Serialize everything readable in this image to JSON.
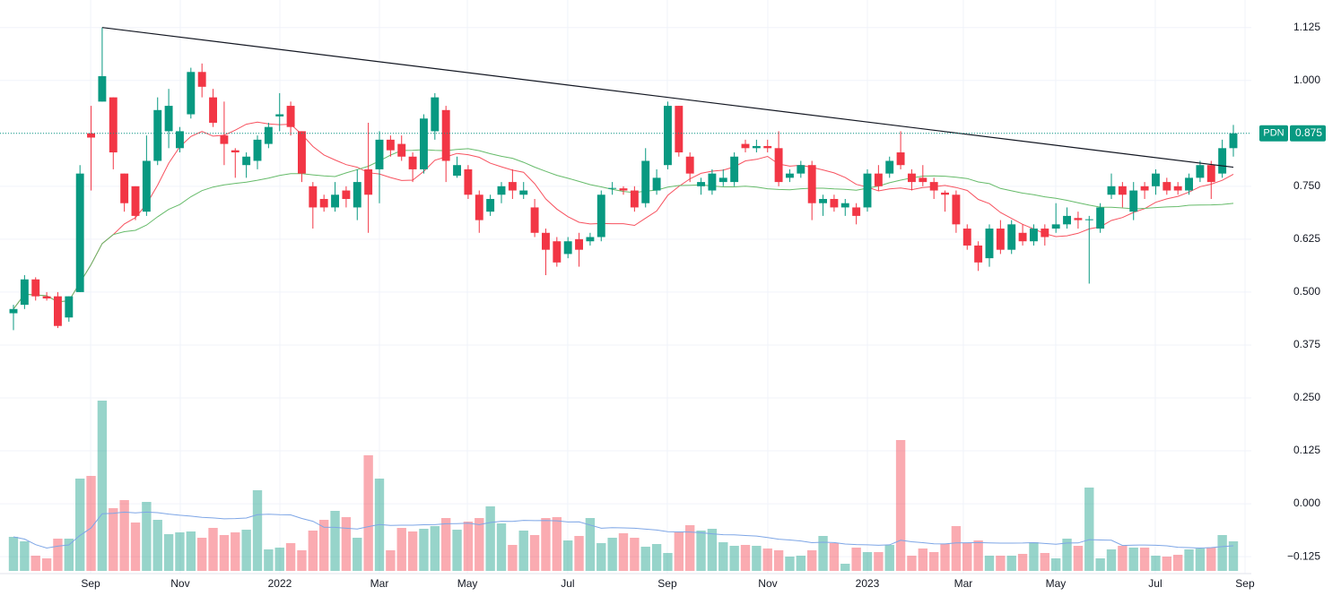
{
  "chart_data": {
    "type": "candlestick",
    "symbol": "PDN",
    "last_price": 0.875,
    "up_color": "#089981",
    "down_color": "#f23645",
    "ylim": [
      -0.165,
      1.19
    ],
    "yticks": [
      1.125,
      {
        "value": 1.0,
        "label": "1.000"
      },
      0.875,
      {
        "value": 0.75,
        "label": "0.750"
      },
      0.625,
      {
        "value": 0.5,
        "label": "0.500"
      },
      0.375,
      {
        "value": 0.25,
        "label": "0.250"
      },
      0.125,
      {
        "value": 0.0,
        "label": "0.000"
      },
      {
        "value": -0.125,
        "label": "−0.125"
      }
    ],
    "xticks": [
      {
        "value": 6.96,
        "label": "Sep"
      },
      {
        "value": 15.04,
        "label": "Nov"
      },
      {
        "value": 24.02,
        "label": "2022"
      },
      {
        "value": 33.0,
        "label": "Mar"
      },
      {
        "value": 40.93,
        "label": "May"
      },
      {
        "value": 49.98,
        "label": "Jul"
      },
      {
        "value": 58.96,
        "label": "Sep"
      },
      {
        "value": 68.02,
        "label": "Nov"
      },
      {
        "value": 77.0,
        "label": "2023"
      },
      {
        "value": 85.65,
        "label": "Mar"
      },
      {
        "value": 93.98,
        "label": "May"
      },
      {
        "value": 102.96,
        "label": "Jul"
      },
      {
        "value": 111.05,
        "label": "Sep"
      }
    ],
    "grid": true,
    "candles": [
      [
        0.45,
        0.47,
        0.41,
        0.46
      ],
      [
        0.47,
        0.54,
        0.46,
        0.53
      ],
      [
        0.53,
        0.535,
        0.48,
        0.49
      ],
      [
        0.49,
        0.5,
        0.48,
        0.485
      ],
      [
        0.49,
        0.5,
        0.415,
        0.42
      ],
      [
        0.44,
        0.49,
        0.43,
        0.49
      ],
      [
        0.5,
        0.8,
        0.5,
        0.78
      ],
      [
        0.875,
        0.94,
        0.74,
        0.865
      ],
      [
        0.95,
        1.125,
        0.95,
        1.01
      ],
      [
        0.96,
        0.96,
        0.79,
        0.83
      ],
      [
        0.78,
        0.78,
        0.69,
        0.71
      ],
      [
        0.75,
        0.75,
        0.67,
        0.68
      ],
      [
        0.69,
        0.87,
        0.68,
        0.81
      ],
      [
        0.81,
        0.96,
        0.8,
        0.93
      ],
      [
        0.88,
        0.98,
        0.84,
        0.94
      ],
      [
        0.84,
        0.89,
        0.83,
        0.88
      ],
      [
        0.92,
        1.03,
        0.91,
        1.02
      ],
      [
        1.02,
        1.04,
        0.96,
        0.985
      ],
      [
        0.96,
        0.98,
        0.89,
        0.9
      ],
      [
        0.87,
        0.95,
        0.8,
        0.85
      ],
      [
        0.835,
        0.84,
        0.77,
        0.83
      ],
      [
        0.8,
        0.83,
        0.77,
        0.82
      ],
      [
        0.81,
        0.87,
        0.79,
        0.86
      ],
      [
        0.85,
        0.9,
        0.84,
        0.89
      ],
      [
        0.915,
        0.97,
        0.88,
        0.92
      ],
      [
        0.94,
        0.95,
        0.87,
        0.89
      ],
      [
        0.88,
        0.88,
        0.76,
        0.78
      ],
      [
        0.75,
        0.76,
        0.65,
        0.7
      ],
      [
        0.72,
        0.73,
        0.69,
        0.7
      ],
      [
        0.7,
        0.76,
        0.69,
        0.73
      ],
      [
        0.74,
        0.75,
        0.7,
        0.72
      ],
      [
        0.7,
        0.79,
        0.67,
        0.76
      ],
      [
        0.79,
        0.9,
        0.64,
        0.73
      ],
      [
        0.79,
        0.88,
        0.71,
        0.86
      ],
      [
        0.86,
        0.87,
        0.82,
        0.835
      ],
      [
        0.85,
        0.87,
        0.81,
        0.82
      ],
      [
        0.82,
        0.83,
        0.76,
        0.79
      ],
      [
        0.79,
        0.92,
        0.78,
        0.91
      ],
      [
        0.88,
        0.97,
        0.86,
        0.96
      ],
      [
        0.93,
        0.94,
        0.76,
        0.81
      ],
      [
        0.775,
        0.82,
        0.77,
        0.8
      ],
      [
        0.79,
        0.8,
        0.72,
        0.73
      ],
      [
        0.73,
        0.74,
        0.64,
        0.67
      ],
      [
        0.69,
        0.73,
        0.68,
        0.72
      ],
      [
        0.73,
        0.76,
        0.71,
        0.75
      ],
      [
        0.76,
        0.79,
        0.72,
        0.74
      ],
      [
        0.73,
        0.76,
        0.72,
        0.74
      ],
      [
        0.7,
        0.72,
        0.63,
        0.64
      ],
      [
        0.64,
        0.65,
        0.54,
        0.6
      ],
      [
        0.62,
        0.63,
        0.56,
        0.57
      ],
      [
        0.59,
        0.63,
        0.58,
        0.62
      ],
      [
        0.625,
        0.64,
        0.56,
        0.6
      ],
      [
        0.62,
        0.64,
        0.61,
        0.63
      ],
      [
        0.63,
        0.74,
        0.62,
        0.73
      ],
      [
        0.745,
        0.76,
        0.73,
        0.746
      ],
      [
        0.745,
        0.75,
        0.73,
        0.74
      ],
      [
        0.74,
        0.75,
        0.69,
        0.7
      ],
      [
        0.71,
        0.84,
        0.7,
        0.81
      ],
      [
        0.74,
        0.79,
        0.73,
        0.77
      ],
      [
        0.8,
        0.95,
        0.79,
        0.94
      ],
      [
        0.94,
        0.94,
        0.82,
        0.83
      ],
      [
        0.82,
        0.83,
        0.76,
        0.78
      ],
      [
        0.75,
        0.77,
        0.73,
        0.76
      ],
      [
        0.74,
        0.79,
        0.73,
        0.78
      ],
      [
        0.76,
        0.79,
        0.75,
        0.77
      ],
      [
        0.76,
        0.83,
        0.75,
        0.82
      ],
      [
        0.85,
        0.86,
        0.83,
        0.84
      ],
      [
        0.84,
        0.86,
        0.83,
        0.845
      ],
      [
        0.845,
        0.86,
        0.83,
        0.84
      ],
      [
        0.84,
        0.88,
        0.75,
        0.76
      ],
      [
        0.77,
        0.79,
        0.76,
        0.78
      ],
      [
        0.78,
        0.81,
        0.77,
        0.8
      ],
      [
        0.8,
        0.81,
        0.67,
        0.71
      ],
      [
        0.71,
        0.73,
        0.68,
        0.72
      ],
      [
        0.72,
        0.73,
        0.69,
        0.7
      ],
      [
        0.7,
        0.72,
        0.68,
        0.71
      ],
      [
        0.7,
        0.71,
        0.66,
        0.68
      ],
      [
        0.7,
        0.79,
        0.69,
        0.78
      ],
      [
        0.78,
        0.8,
        0.74,
        0.75
      ],
      [
        0.78,
        0.82,
        0.77,
        0.81
      ],
      [
        0.83,
        0.88,
        0.79,
        0.8
      ],
      [
        0.78,
        0.79,
        0.74,
        0.76
      ],
      [
        0.77,
        0.8,
        0.75,
        0.76
      ],
      [
        0.76,
        0.77,
        0.72,
        0.74
      ],
      [
        0.735,
        0.74,
        0.69,
        0.73
      ],
      [
        0.73,
        0.74,
        0.64,
        0.66
      ],
      [
        0.65,
        0.66,
        0.6,
        0.61
      ],
      [
        0.61,
        0.62,
        0.55,
        0.57
      ],
      [
        0.58,
        0.66,
        0.56,
        0.65
      ],
      [
        0.65,
        0.67,
        0.59,
        0.6
      ],
      [
        0.6,
        0.67,
        0.59,
        0.66
      ],
      [
        0.64,
        0.66,
        0.61,
        0.62
      ],
      [
        0.62,
        0.66,
        0.61,
        0.65
      ],
      [
        0.65,
        0.66,
        0.61,
        0.63
      ],
      [
        0.65,
        0.71,
        0.64,
        0.66
      ],
      [
        0.66,
        0.7,
        0.65,
        0.68
      ],
      [
        0.675,
        0.69,
        0.65,
        0.67
      ],
      [
        0.67,
        0.68,
        0.52,
        0.672
      ],
      [
        0.65,
        0.71,
        0.64,
        0.7
      ],
      [
        0.73,
        0.78,
        0.72,
        0.75
      ],
      [
        0.75,
        0.76,
        0.7,
        0.73
      ],
      [
        0.69,
        0.76,
        0.67,
        0.74
      ],
      [
        0.75,
        0.76,
        0.72,
        0.74
      ],
      [
        0.75,
        0.79,
        0.73,
        0.78
      ],
      [
        0.76,
        0.77,
        0.73,
        0.74
      ],
      [
        0.75,
        0.76,
        0.73,
        0.74
      ],
      [
        0.74,
        0.78,
        0.73,
        0.77
      ],
      [
        0.77,
        0.81,
        0.76,
        0.8
      ],
      [
        0.8,
        0.81,
        0.72,
        0.76
      ],
      [
        0.78,
        0.86,
        0.77,
        0.84
      ],
      [
        0.84,
        0.895,
        0.82,
        0.875
      ]
    ],
    "volume": [
      38,
      33,
      17,
      14,
      36,
      36,
      103,
      106,
      190,
      70,
      79,
      54,
      77,
      57,
      41,
      43,
      44,
      37,
      48,
      40,
      43,
      46,
      90,
      24,
      26,
      31,
      23,
      45,
      57,
      67,
      60,
      37,
      129,
      103,
      23,
      48,
      44,
      47,
      50,
      59,
      46,
      55,
      59,
      72,
      53,
      29,
      45,
      40,
      59,
      60,
      34,
      39,
      59,
      31,
      37,
      42,
      37,
      27,
      30,
      20,
      43,
      51,
      45,
      47,
      32,
      28,
      29,
      28,
      25,
      23,
      16,
      17,
      23,
      39,
      31,
      8,
      26,
      21,
      21,
      29,
      146,
      17,
      25,
      21,
      30,
      50,
      31,
      34,
      17,
      17,
      17,
      19,
      32,
      20,
      14,
      36,
      28,
      93,
      14,
      24,
      28,
      26,
      26,
      17,
      16,
      18,
      24,
      25,
      26,
      40,
      33
    ],
    "vlim": [
      0,
      200
    ],
    "trendline": {
      "x": [
        8,
        110
      ],
      "y": [
        1.125,
        0.795
      ],
      "color": "#131722"
    },
    "ma_colors": [
      "#f7525f",
      "#66bb6a"
    ],
    "volume_ma_color": "#7ea6e6"
  }
}
